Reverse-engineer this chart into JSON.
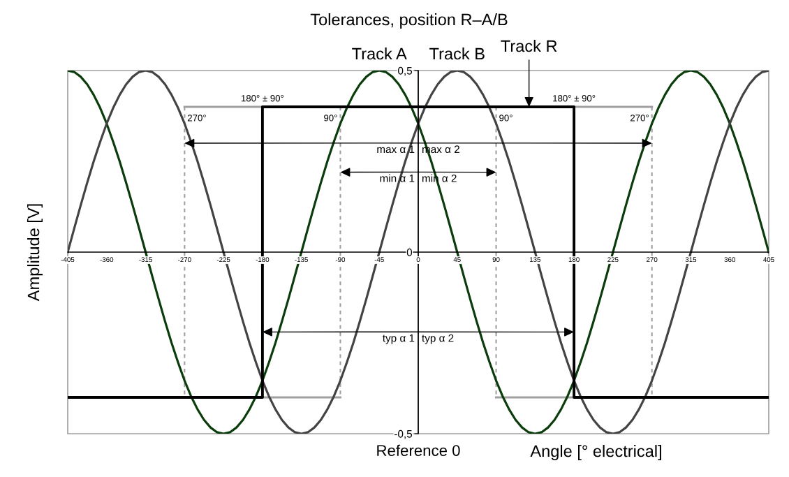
{
  "chart_data": {
    "type": "line",
    "title": "Tolerances, position R–A/B",
    "xlabel": "Angle [° electrical]",
    "ylabel": "Amplitude [V]",
    "xlim": [
      -405,
      405
    ],
    "ylim": [
      -0.5,
      0.5
    ],
    "xticks": [
      -405,
      -360,
      -315,
      -270,
      -225,
      -180,
      -135,
      -90,
      -45,
      0,
      45,
      90,
      135,
      180,
      225,
      270,
      315,
      360,
      405
    ],
    "yticks": [
      {
        "value": -0.5,
        "label": "-0,5"
      },
      0,
      {
        "value": 0.5,
        "label": "0,5"
      }
    ],
    "x": [
      -405,
      -397.5,
      -390,
      -382.5,
      -375,
      -367.5,
      -360,
      -352.5,
      -345,
      -337.5,
      -330,
      -322.5,
      -315,
      -307.5,
      -300,
      -292.5,
      -285,
      -277.5,
      -270,
      -262.5,
      -255,
      -247.5,
      -240,
      -232.5,
      -225,
      -217.5,
      -210,
      -202.5,
      -195,
      -187.5,
      -180,
      -172.5,
      -165,
      -157.5,
      -150,
      -142.5,
      -135,
      -127.5,
      -120,
      -112.5,
      -105,
      -97.5,
      -90,
      -82.5,
      -75,
      -67.5,
      -60,
      -52.5,
      -45,
      -37.5,
      -30,
      -22.5,
      -15,
      -7.5,
      0,
      7.5,
      15,
      22.5,
      30,
      37.5,
      45,
      52.5,
      60,
      67.5,
      75,
      82.5,
      90,
      97.5,
      105,
      112.5,
      120,
      127.5,
      135,
      142.5,
      150,
      157.5,
      165,
      172.5,
      180,
      187.5,
      195,
      202.5,
      210,
      217.5,
      225,
      232.5,
      240,
      247.5,
      255,
      262.5,
      270,
      277.5,
      285,
      292.5,
      300,
      307.5,
      315,
      322.5,
      330,
      337.5,
      345,
      352.5,
      360,
      367.5,
      375,
      382.5,
      390,
      397.5,
      405
    ],
    "series": [
      {
        "color": "#a0a0a0",
        "line_style": "solid",
        "x": [
          -270,
          -180,
          0,
          180,
          270
        ],
        "values": [
          0.4,
          0.4,
          null,
          0.4,
          0.4
        ]
      },
      {
        "color": "#a0a0a0",
        "line_style": "solid",
        "x": [
          -180,
          -90,
          0,
          90,
          180
        ],
        "values": [
          -0.4,
          -0.4,
          null,
          -0.4,
          -0.4
        ]
      },
      {
        "color": "#a0a0a0",
        "line_style": "dashed",
        "x": [
          -270,
          -270,
          -180,
          -90,
          -90,
          0,
          90,
          90,
          180,
          270,
          270
        ],
        "values": [
          0.4,
          -0.4,
          null,
          0.4,
          -0.4,
          null,
          0.4,
          -0.4,
          null,
          0.4,
          -0.4
        ]
      },
      {
        "color": "#0b3c0b",
        "values": [
          0.5,
          0.496,
          0.483,
          0.462,
          0.433,
          0.397,
          0.354,
          0.304,
          0.25,
          0.191,
          0.129,
          0.065,
          0,
          -0.065,
          -0.129,
          -0.191,
          -0.25,
          -0.304,
          -0.354,
          -0.397,
          -0.433,
          -0.462,
          -0.483,
          -0.496,
          -0.5,
          -0.496,
          -0.483,
          -0.462,
          -0.433,
          -0.397,
          -0.354,
          -0.304,
          -0.25,
          -0.191,
          -0.129,
          -0.065,
          0,
          0.065,
          0.129,
          0.191,
          0.25,
          0.304,
          0.354,
          0.397,
          0.433,
          0.462,
          0.483,
          0.496,
          0.5,
          0.496,
          0.483,
          0.462,
          0.433,
          0.397,
          0.354,
          0.304,
          0.25,
          0.191,
          0.129,
          0.065,
          0,
          -0.065,
          -0.129,
          -0.191,
          -0.25,
          -0.304,
          -0.354,
          -0.397,
          -0.433,
          -0.462,
          -0.483,
          -0.496,
          -0.5,
          -0.496,
          -0.483,
          -0.462,
          -0.433,
          -0.397,
          -0.354,
          -0.304,
          -0.25,
          -0.191,
          -0.129,
          -0.065,
          0,
          0.065,
          0.129,
          0.191,
          0.25,
          0.304,
          0.354,
          0.397,
          0.433,
          0.462,
          0.483,
          0.496,
          0.5,
          0.496,
          0.483,
          0.462,
          0.433,
          0.397,
          0.354,
          0.304,
          0.25,
          0.191,
          0.129,
          0.065,
          0
        ]
      },
      {
        "color": "#434343",
        "values": [
          0,
          0.065,
          0.129,
          0.191,
          0.25,
          0.304,
          0.354,
          0.397,
          0.433,
          0.462,
          0.483,
          0.496,
          0.5,
          0.496,
          0.483,
          0.462,
          0.433,
          0.397,
          0.354,
          0.304,
          0.25,
          0.191,
          0.129,
          0.065,
          0,
          -0.065,
          -0.129,
          -0.191,
          -0.25,
          -0.304,
          -0.354,
          -0.397,
          -0.433,
          -0.462,
          -0.483,
          -0.496,
          -0.5,
          -0.496,
          -0.483,
          -0.462,
          -0.433,
          -0.397,
          -0.354,
          -0.304,
          -0.25,
          -0.191,
          -0.129,
          -0.065,
          0,
          0.065,
          0.129,
          0.191,
          0.25,
          0.304,
          0.354,
          0.397,
          0.433,
          0.462,
          0.483,
          0.496,
          0.5,
          0.496,
          0.483,
          0.462,
          0.433,
          0.397,
          0.354,
          0.304,
          0.25,
          0.191,
          0.129,
          0.065,
          0,
          -0.065,
          -0.129,
          -0.191,
          -0.25,
          -0.304,
          -0.354,
          -0.397,
          -0.433,
          -0.462,
          -0.483,
          -0.496,
          -0.5,
          -0.496,
          -0.483,
          -0.462,
          -0.433,
          -0.397,
          -0.354,
          -0.304,
          -0.25,
          -0.191,
          -0.129,
          -0.065,
          0,
          0.065,
          0.129,
          0.191,
          0.25,
          0.304,
          0.354,
          0.397,
          0.433,
          0.462,
          0.483,
          0.496,
          0.5
        ]
      },
      {
        "type": "step",
        "color": "#000000",
        "x": [
          -405,
          -180,
          180,
          405
        ],
        "values": [
          -0.4,
          0.4,
          -0.4,
          -0.4
        ]
      }
    ],
    "ref_lines": [
      {
        "axis": "x",
        "value": 0,
        "label": "Reference 0",
        "color": "#000000"
      }
    ],
    "annotations": [
      {
        "text": "Track A",
        "x": -45,
        "y": 0.5
      },
      {
        "text": "Track B",
        "x": 45,
        "y": 0.5
      },
      {
        "text": "Track R",
        "x": 128,
        "y": 0.4
      },
      {
        "text": "180° ± 90°",
        "x": -180,
        "y": 0.4
      },
      {
        "text": "180° ± 90°",
        "x": 180,
        "y": 0.4
      },
      {
        "text": "270°",
        "x": -270,
        "y": 0.4
      },
      {
        "text": "90°",
        "x": -90,
        "y": 0.4
      },
      {
        "text": "90°",
        "x": 90,
        "y": 0.4
      },
      {
        "text": "270°",
        "x": 270,
        "y": 0.4
      },
      {
        "text": "max α 1",
        "x": -270,
        "y": 0.3
      },
      {
        "text": "max α 2",
        "x": 270,
        "y": 0.3
      },
      {
        "text": "min α 1",
        "x": -90,
        "y": 0.22
      },
      {
        "text": "min α 2",
        "x": 90,
        "y": 0.22
      },
      {
        "text": "typ α 1",
        "x": -180,
        "y": -0.22
      },
      {
        "text": "typ α 2",
        "x": 180,
        "y": -0.22
      }
    ]
  }
}
